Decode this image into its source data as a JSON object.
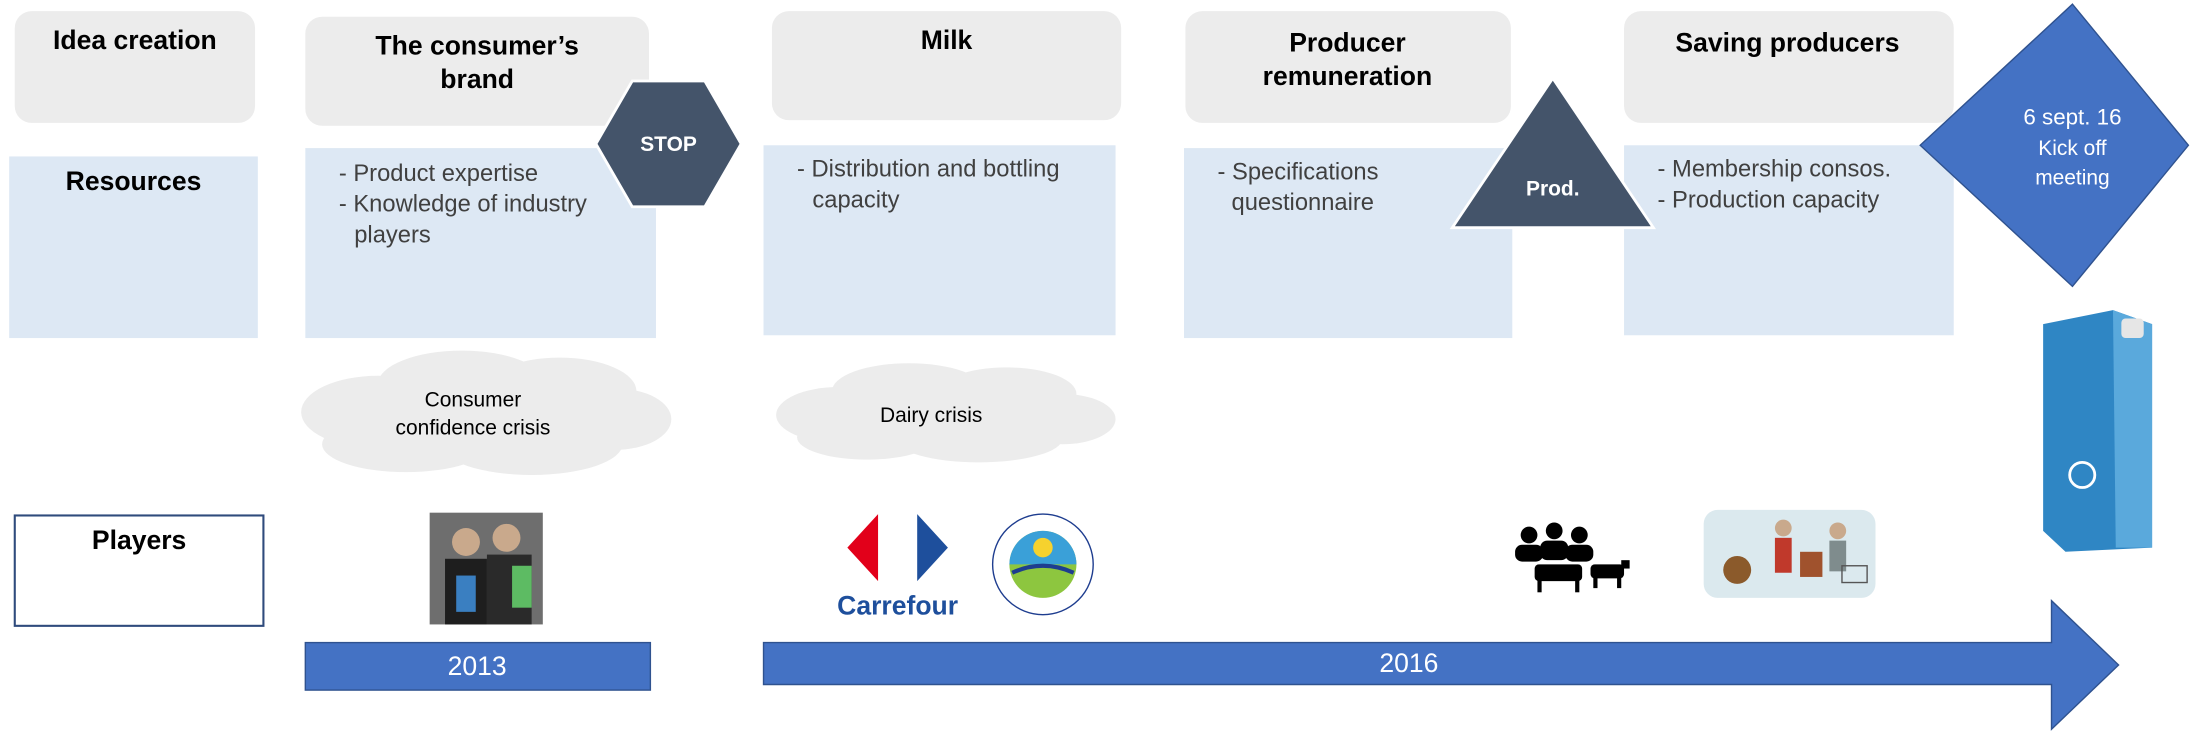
{
  "row_labels": {
    "resources": "Resources",
    "players": "Players"
  },
  "stages": [
    {
      "title": [
        "Idea creation"
      ]
    },
    {
      "title": [
        "The consumer’s",
        "brand"
      ],
      "resources": [
        "- Product expertise",
        "- Knowledge of industry",
        "players"
      ]
    },
    {
      "title": [
        "Milk"
      ],
      "resources": [
        "- Distribution and bottling",
        "capacity"
      ]
    },
    {
      "title": [
        "Producer",
        "remuneration"
      ],
      "resources": [
        "- Specifications",
        "questionnaire"
      ]
    },
    {
      "title": [
        "Saving producers"
      ],
      "resources": [
        "- Membership consos.",
        "- Production capacity"
      ]
    }
  ],
  "stop_sign": "STOP",
  "prod_sign": "Prod.",
  "milestone": [
    "6 sept. 16",
    "Kick off",
    "meeting"
  ],
  "clouds": [
    [
      "Consumer",
      "confidence crisis"
    ],
    [
      "Dairy crisis"
    ]
  ],
  "logos": {
    "carrefour": "Carrefour"
  },
  "timeline": [
    "2013",
    "2016"
  ]
}
